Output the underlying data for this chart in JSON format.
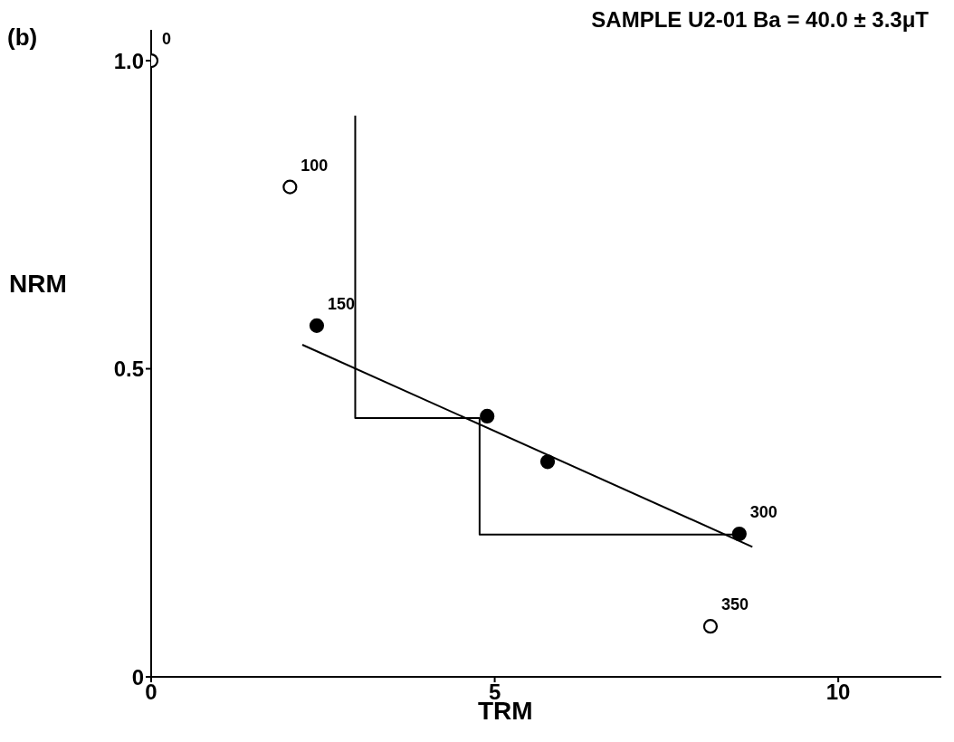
{
  "chart_data": {
    "type": "scatter",
    "title": "SAMPLE U2-01 Ba = 40.0 ± 3.3μT",
    "xlabel": "TRM",
    "ylabel": "NRM",
    "annotations": [
      "(b)",
      {
        "text": "0",
        "x": 0,
        "y": 1.0
      },
      {
        "text": "100",
        "x": 2.02,
        "y": 0.795
      },
      {
        "text": "150",
        "x": 2.41,
        "y": 0.57
      },
      {
        "text": "300",
        "x": 8.56,
        "y": 0.232
      },
      {
        "text": "350",
        "x": 8.14,
        "y": 0.082
      }
    ],
    "series": [
      {
        "color": "#ffffff",
        "x": [
          0,
          2.02,
          8.14
        ],
        "values": [
          1.0,
          0.795,
          0.082
        ]
      },
      {
        "color": "#000000",
        "x": [
          2.41,
          4.89,
          5.77,
          8.56
        ],
        "values": [
          0.57,
          0.423,
          0.349,
          0.232
        ]
      },
      {
        "type": "line",
        "marker": "none",
        "color": "#000000",
        "x": [
          2.2,
          8.75
        ],
        "values": [
          0.539,
          0.211
        ]
      },
      {
        "type": "line",
        "marker": "none",
        "color": "#000000",
        "x": [
          2.97,
          2.97,
          4.78,
          4.78,
          8.56
        ],
        "values": [
          0.911,
          0.42,
          0.42,
          0.231,
          0.231
        ]
      }
    ],
    "marker": "circle",
    "line_style": "solid",
    "xlim": [
      0,
      11.5
    ],
    "xticks": [
      0,
      5,
      10
    ],
    "ylim": [
      0,
      1.05
    ],
    "yticks": [
      0,
      {
        "value": 0.5,
        "label": "0.5"
      },
      {
        "value": 1,
        "label": "1.0"
      }
    ]
  }
}
